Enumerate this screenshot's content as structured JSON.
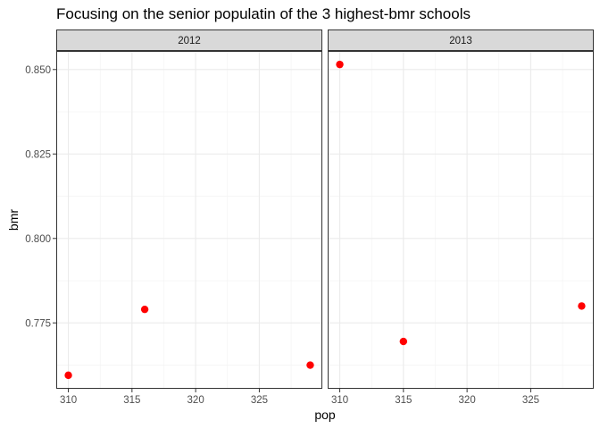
{
  "chart_data": {
    "type": "scatter",
    "title": "Focusing on the senior populatin of the 3 highest-bmr schools",
    "xlabel": "pop",
    "ylabel": "bmr",
    "xlim": [
      309.05,
      329.95
    ],
    "ylim": [
      0.7555,
      0.8555
    ],
    "x_ticks": [
      310,
      315,
      320,
      325
    ],
    "x_tick_labels": [
      "310",
      "315",
      "320",
      "325"
    ],
    "y_ticks": [
      0.775,
      0.8,
      0.825,
      0.85
    ],
    "y_tick_labels": [
      "0.775",
      "0.800",
      "0.825",
      "0.850"
    ],
    "grid": true,
    "point_color": "#ff0000",
    "panels": [
      {
        "facet": "2012",
        "points": [
          {
            "x": 310,
            "y": 0.7595
          },
          {
            "x": 316,
            "y": 0.779
          },
          {
            "x": 329,
            "y": 0.7625
          }
        ]
      },
      {
        "facet": "2013",
        "points": [
          {
            "x": 310,
            "y": 0.8515
          },
          {
            "x": 315,
            "y": 0.7695
          },
          {
            "x": 329,
            "y": 0.78
          }
        ]
      }
    ]
  }
}
